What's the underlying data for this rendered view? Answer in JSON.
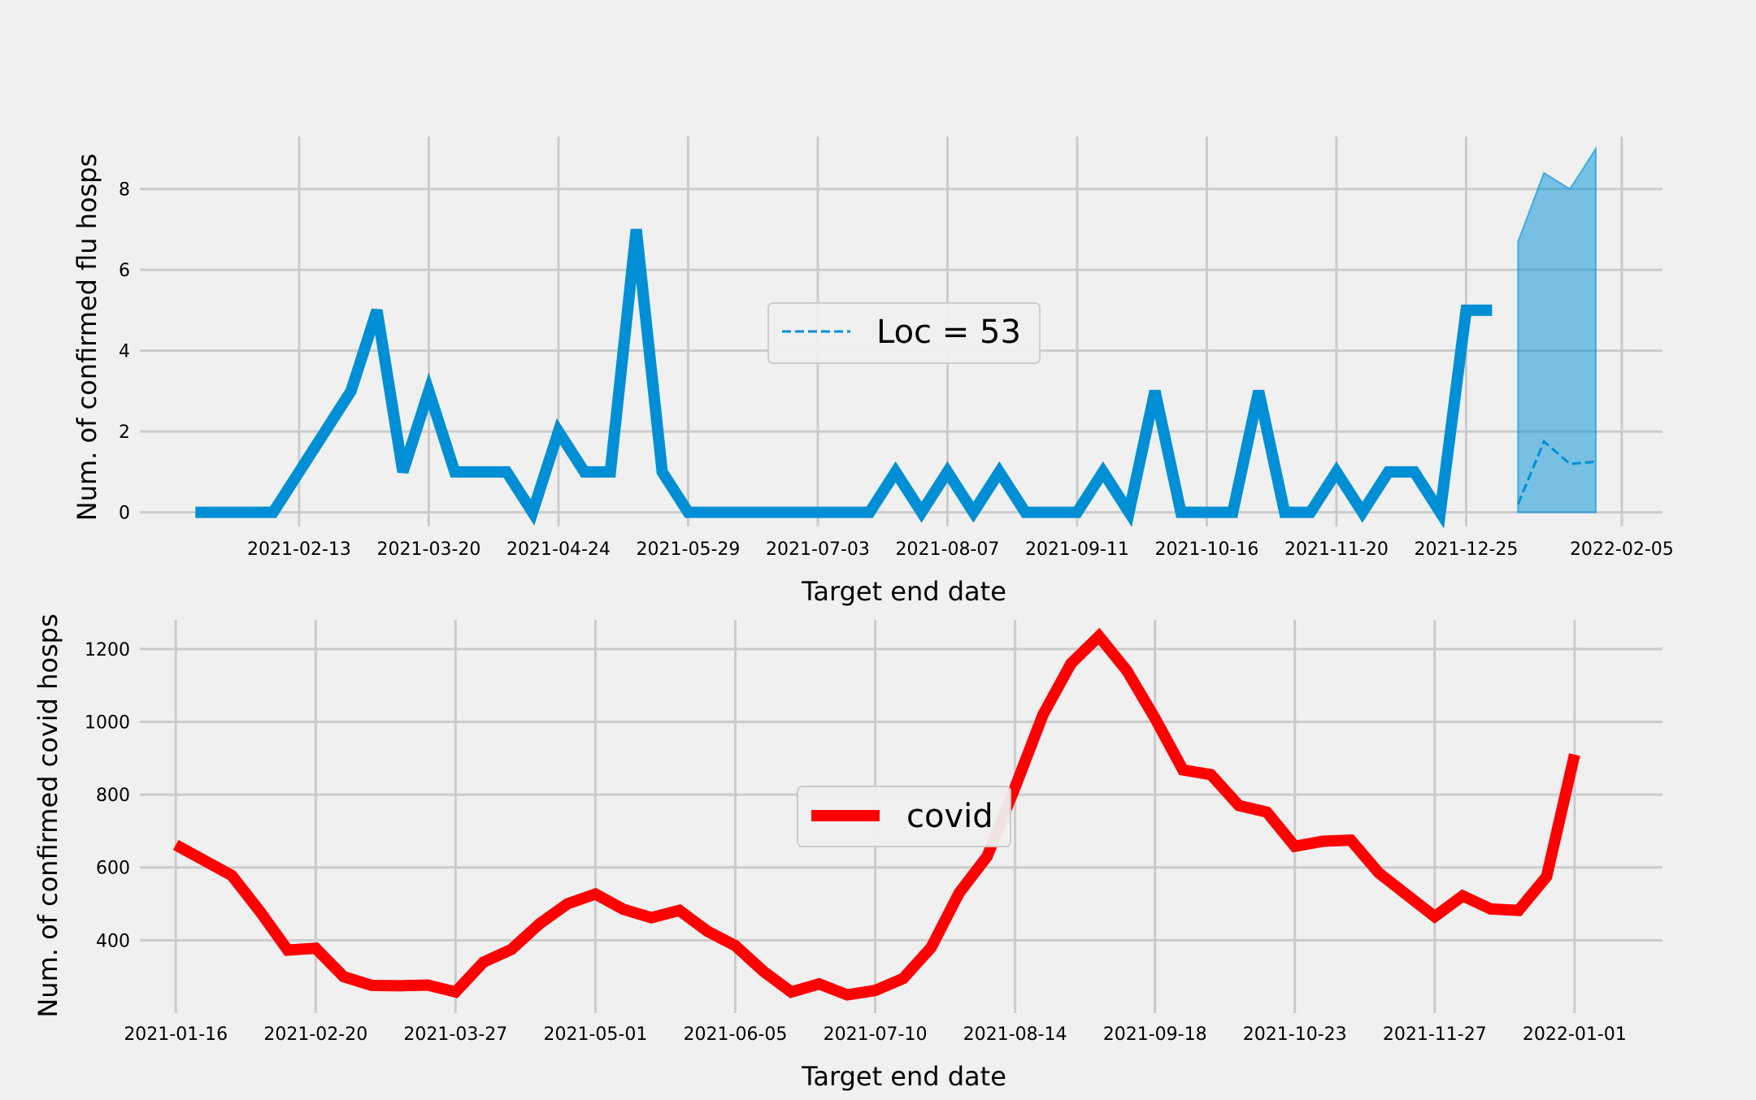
{
  "chart_data": [
    {
      "type": "line",
      "xlabel": "Target end date",
      "ylabel": "Num. of confirmed flu hosps",
      "xlim": [
        "2021-01-01",
        "2022-02-16"
      ],
      "ylim": [
        -0.35,
        9.3
      ],
      "yticks": [
        0,
        2,
        4,
        6,
        8
      ],
      "xtick_labels": [
        "2021-02-13",
        "2021-03-20",
        "2021-04-24",
        "2021-05-29",
        "2021-07-03",
        "2021-08-07",
        "2021-09-11",
        "2021-10-16",
        "2021-11-20",
        "2021-12-25",
        "2022-02-05"
      ],
      "grid": true,
      "legend_position": "center",
      "series": [
        {
          "style": "solid",
          "color": "#008fd5",
          "points": [
            [
              "2021-01-16",
              0
            ],
            [
              "2021-01-23",
              0
            ],
            [
              "2021-01-30",
              0
            ],
            [
              "2021-02-06",
              0
            ],
            [
              "2021-02-13",
              1
            ],
            [
              "2021-02-20",
              2
            ],
            [
              "2021-02-27",
              3
            ],
            [
              "2021-03-06",
              5
            ],
            [
              "2021-03-13",
              1
            ],
            [
              "2021-03-20",
              3
            ],
            [
              "2021-03-27",
              1
            ],
            [
              "2021-04-03",
              1
            ],
            [
              "2021-04-10",
              1
            ],
            [
              "2021-04-17",
              0
            ],
            [
              "2021-04-24",
              2
            ],
            [
              "2021-05-01",
              1
            ],
            [
              "2021-05-08",
              1
            ],
            [
              "2021-05-15",
              7
            ],
            [
              "2021-05-22",
              1
            ],
            [
              "2021-05-29",
              0
            ],
            [
              "2021-06-05",
              0
            ],
            [
              "2021-06-12",
              0
            ],
            [
              "2021-06-19",
              0
            ],
            [
              "2021-06-26",
              0
            ],
            [
              "2021-07-03",
              0
            ],
            [
              "2021-07-10",
              0
            ],
            [
              "2021-07-17",
              0
            ],
            [
              "2021-07-24",
              1
            ],
            [
              "2021-07-31",
              0
            ],
            [
              "2021-08-07",
              1
            ],
            [
              "2021-08-14",
              0
            ],
            [
              "2021-08-21",
              1
            ],
            [
              "2021-08-28",
              0
            ],
            [
              "2021-09-04",
              0
            ],
            [
              "2021-09-11",
              0
            ],
            [
              "2021-09-18",
              1
            ],
            [
              "2021-09-25",
              0
            ],
            [
              "2021-10-02",
              3
            ],
            [
              "2021-10-09",
              0
            ],
            [
              "2021-10-16",
              0
            ],
            [
              "2021-10-23",
              0
            ],
            [
              "2021-10-30",
              3
            ],
            [
              "2021-11-06",
              0
            ],
            [
              "2021-11-13",
              0
            ],
            [
              "2021-11-20",
              1
            ],
            [
              "2021-11-27",
              0
            ],
            [
              "2021-12-04",
              1
            ],
            [
              "2021-12-11",
              1
            ],
            [
              "2021-12-18",
              0
            ],
            [
              "2021-12-25",
              5
            ],
            [
              "2022-01-01",
              5
            ]
          ]
        },
        {
          "name": "Loc = 53",
          "style": "dashed",
          "color": "#008fd5",
          "points": [
            [
              "2022-01-08",
              0.2
            ],
            [
              "2022-01-15",
              1.75
            ],
            [
              "2022-01-22",
              1.2
            ],
            [
              "2022-01-29",
              1.25
            ]
          ]
        }
      ],
      "band": {
        "color": "#008fd5",
        "opacity": 0.5,
        "x": [
          "2022-01-08",
          "2022-01-15",
          "2022-01-22",
          "2022-01-29"
        ],
        "lower": [
          0,
          0,
          0,
          0
        ],
        "upper": [
          6.7,
          8.4,
          8.0,
          9.0
        ]
      }
    },
    {
      "type": "line",
      "xlabel": "Target end date",
      "ylabel": "Num. of confirmed covid hosps",
      "xlim": [
        "2021-01-07",
        "2022-01-23"
      ],
      "ylim": [
        200,
        1280
      ],
      "yticks": [
        400,
        600,
        800,
        1000,
        1200
      ],
      "xtick_labels": [
        "2021-01-16",
        "2021-02-20",
        "2021-03-27",
        "2021-05-01",
        "2021-06-05",
        "2021-07-10",
        "2021-08-14",
        "2021-09-18",
        "2021-10-23",
        "2021-11-27",
        "2022-01-01"
      ],
      "grid": true,
      "legend_position": "center",
      "series": [
        {
          "name": "covid",
          "style": "solid",
          "color": "#ff0000",
          "points": [
            [
              "2021-01-16",
              662
            ],
            [
              "2021-01-23",
              620
            ],
            [
              "2021-01-30",
              578
            ],
            [
              "2021-02-06",
              480
            ],
            [
              "2021-02-13",
              373
            ],
            [
              "2021-02-20",
              378
            ],
            [
              "2021-02-27",
              300
            ],
            [
              "2021-03-06",
              276
            ],
            [
              "2021-03-13",
              275
            ],
            [
              "2021-03-20",
              277
            ],
            [
              "2021-03-27",
              258
            ],
            [
              "2021-04-03",
              340
            ],
            [
              "2021-04-10",
              375
            ],
            [
              "2021-04-17",
              445
            ],
            [
              "2021-04-24",
              500
            ],
            [
              "2021-05-01",
              527
            ],
            [
              "2021-05-08",
              485
            ],
            [
              "2021-05-15",
              462
            ],
            [
              "2021-05-22",
              482
            ],
            [
              "2021-05-29",
              425
            ],
            [
              "2021-06-05",
              385
            ],
            [
              "2021-06-12",
              315
            ],
            [
              "2021-06-19",
              258
            ],
            [
              "2021-06-26",
              280
            ],
            [
              "2021-07-03",
              250
            ],
            [
              "2021-07-10",
              262
            ],
            [
              "2021-07-17",
              295
            ],
            [
              "2021-07-24",
              380
            ],
            [
              "2021-07-31",
              530
            ],
            [
              "2021-08-07",
              630
            ],
            [
              "2021-08-14",
              820
            ],
            [
              "2021-08-21",
              1020
            ],
            [
              "2021-08-28",
              1160
            ],
            [
              "2021-09-04",
              1235
            ],
            [
              "2021-09-11",
              1140
            ],
            [
              "2021-09-18",
              1010
            ],
            [
              "2021-09-25",
              868
            ],
            [
              "2021-10-02",
              855
            ],
            [
              "2021-10-09",
              770
            ],
            [
              "2021-10-16",
              752
            ],
            [
              "2021-10-23",
              658
            ],
            [
              "2021-10-30",
              672
            ],
            [
              "2021-11-06",
              675
            ],
            [
              "2021-11-13",
              585
            ],
            [
              "2021-11-20",
              525
            ],
            [
              "2021-11-27",
              465
            ],
            [
              "2021-12-04",
              522
            ],
            [
              "2021-12-11",
              486
            ],
            [
              "2021-12-18",
              482
            ],
            [
              "2021-12-25",
              575
            ],
            [
              "2022-01-01",
              910
            ]
          ]
        }
      ]
    }
  ]
}
